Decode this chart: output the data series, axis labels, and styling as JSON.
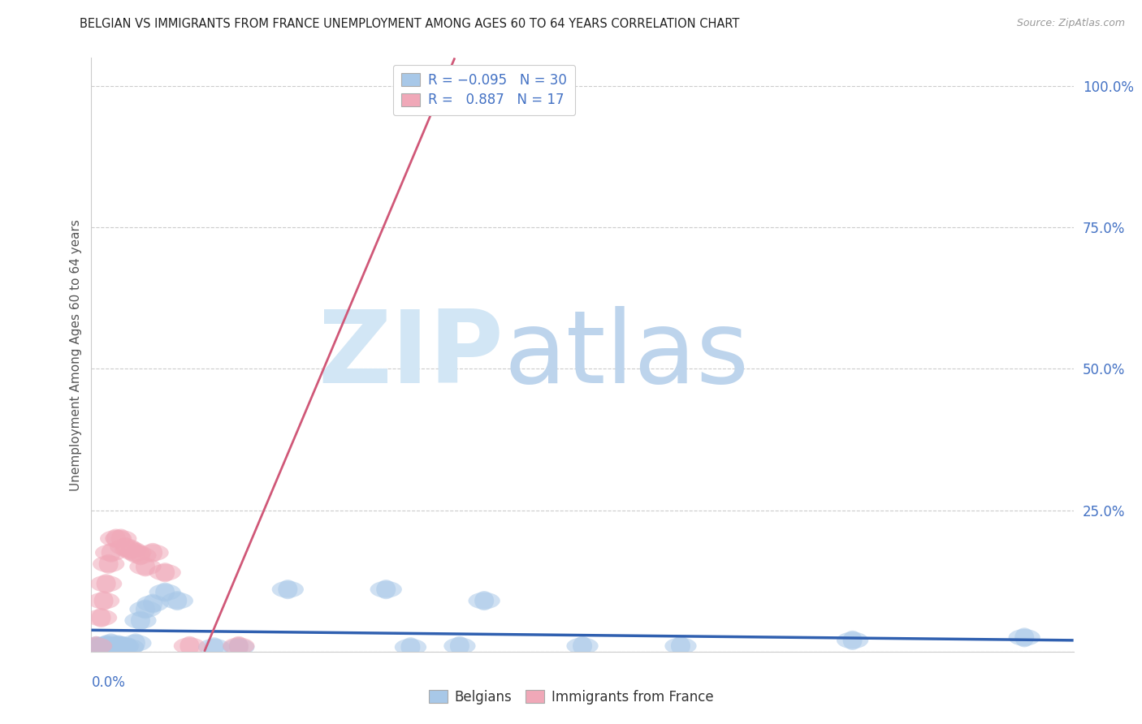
{
  "title": "BELGIAN VS IMMIGRANTS FROM FRANCE UNEMPLOYMENT AMONG AGES 60 TO 64 YEARS CORRELATION CHART",
  "source": "Source: ZipAtlas.com",
  "ylabel": "Unemployment Among Ages 60 to 64 years",
  "xmin": 0.0,
  "xmax": 0.4,
  "ymin": 0.0,
  "ymax": 1.05,
  "ytick_positions": [
    0.0,
    0.25,
    0.5,
    0.75,
    1.0
  ],
  "ytick_labels": [
    "",
    "25.0%",
    "50.0%",
    "75.0%",
    "100.0%"
  ],
  "blue_scatter_color": "#a8c8e8",
  "blue_line_color": "#3060b0",
  "pink_scatter_color": "#f0a8b8",
  "pink_line_color": "#d05878",
  "watermark_zip_color": "#d0e4f4",
  "watermark_atlas_color": "#c0d8f0",
  "axis_label_color": "#4472c4",
  "grid_color": "#cccccc",
  "title_color": "#222222",
  "source_color": "#999999",
  "bel_x": [
    0.002,
    0.003,
    0.004,
    0.005,
    0.006,
    0.007,
    0.008,
    0.009,
    0.01,
    0.011,
    0.012,
    0.013,
    0.015,
    0.018,
    0.02,
    0.022,
    0.025,
    0.03,
    0.035,
    0.05,
    0.06,
    0.08,
    0.12,
    0.13,
    0.15,
    0.16,
    0.2,
    0.24,
    0.31,
    0.38
  ],
  "bel_y": [
    0.01,
    0.008,
    0.008,
    0.005,
    0.012,
    0.01,
    0.015,
    0.01,
    0.008,
    0.012,
    0.01,
    0.01,
    0.008,
    0.015,
    0.055,
    0.075,
    0.085,
    0.105,
    0.09,
    0.008,
    0.008,
    0.11,
    0.11,
    0.008,
    0.01,
    0.09,
    0.01,
    0.01,
    0.02,
    0.025
  ],
  "imm_x": [
    0.002,
    0.004,
    0.005,
    0.006,
    0.007,
    0.008,
    0.01,
    0.012,
    0.014,
    0.016,
    0.018,
    0.02,
    0.022,
    0.025,
    0.03,
    0.04,
    0.06
  ],
  "imm_y": [
    0.01,
    0.06,
    0.09,
    0.12,
    0.155,
    0.175,
    0.2,
    0.2,
    0.185,
    0.18,
    0.175,
    0.17,
    0.15,
    0.175,
    0.14,
    0.01,
    0.01
  ],
  "bel_line_x0": 0.0,
  "bel_line_x1": 0.4,
  "bel_line_y0": 0.038,
  "bel_line_y1": 0.02,
  "imm_line_x0": 0.046,
  "imm_line_x1": 0.148,
  "imm_line_y0": 0.0,
  "imm_line_y1": 1.05
}
